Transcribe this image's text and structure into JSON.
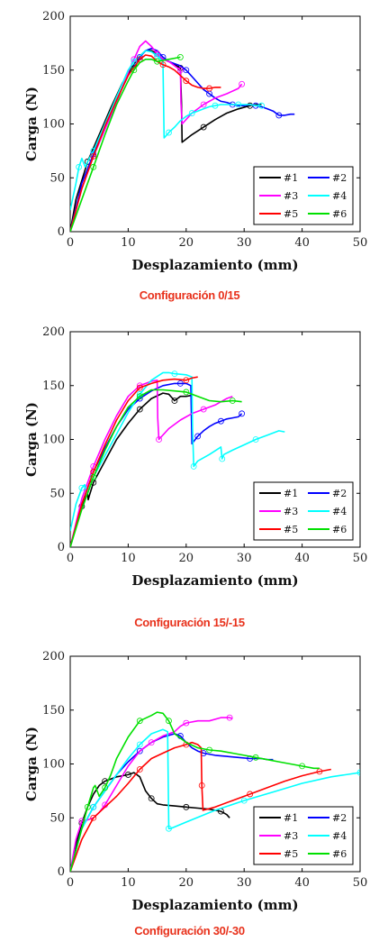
{
  "chart_data": [
    {
      "type": "line",
      "caption": "Configuración 0/15",
      "xlabel": "Desplazamiento (mm)",
      "ylabel": "Carga (N)",
      "xlim": [
        0,
        50
      ],
      "ylim": [
        0,
        200
      ],
      "xticks": [
        0,
        10,
        20,
        30,
        40,
        50
      ],
      "yticks": [
        0,
        50,
        100,
        150,
        200
      ],
      "legend_position": "lower-right",
      "series": [
        {
          "name": "#1",
          "color": "#000000",
          "x": [
            0,
            1,
            3,
            5,
            7,
            9,
            11,
            12,
            13,
            14,
            15,
            16,
            17,
            18,
            19,
            19.2,
            19.3,
            21,
            23,
            25,
            27,
            29,
            31,
            32,
            33
          ],
          "y": [
            0,
            30,
            65,
            90,
            115,
            138,
            155,
            163,
            168,
            168,
            165,
            160,
            158,
            155,
            152,
            120,
            83,
            90,
            97,
            104,
            110,
            114,
            117,
            118,
            118
          ]
        },
        {
          "name": "#2",
          "color": "#0000ff",
          "x": [
            0,
            2,
            4,
            6,
            8,
            10,
            12,
            13,
            14,
            15,
            16,
            17,
            18,
            19,
            20,
            21,
            22,
            23,
            24,
            25,
            26,
            27,
            28,
            29,
            30,
            31,
            32,
            33,
            34,
            35,
            36,
            37,
            38,
            38.7
          ],
          "y": [
            0,
            45,
            72,
            98,
            122,
            145,
            162,
            168,
            170,
            168,
            162,
            158,
            156,
            154,
            150,
            144,
            138,
            132,
            128,
            124,
            121,
            120,
            118,
            117,
            117,
            118,
            117,
            116,
            114,
            112,
            108,
            108,
            109,
            109
          ]
        },
        {
          "name": "#3",
          "color": "#ff00ff",
          "x": [
            0,
            2,
            4,
            6,
            8,
            10,
            11,
            12,
            13,
            14,
            15,
            16,
            17,
            18,
            19,
            19.1,
            19.3,
            21,
            23,
            25,
            27,
            29,
            29.6
          ],
          "y": [
            0,
            40,
            70,
            95,
            120,
            148,
            160,
            172,
            177,
            172,
            165,
            160,
            158,
            154,
            150,
            120,
            100,
            110,
            118,
            124,
            128,
            133,
            137
          ]
        },
        {
          "name": "#4",
          "color": "#00ffff",
          "x": [
            0,
            1,
            1.5,
            2,
            2.6,
            3,
            4,
            6,
            8,
            10,
            11,
            12,
            13,
            14,
            15,
            16,
            16.1,
            16.2,
            17,
            18,
            19,
            20,
            21,
            22,
            23,
            24,
            25,
            26,
            27,
            28,
            29,
            30,
            31,
            32,
            33
          ],
          "y": [
            20,
            45,
            60,
            68,
            60,
            65,
            75,
            100,
            125,
            150,
            158,
            163,
            168,
            167,
            163,
            158,
            120,
            87,
            92,
            97,
            103,
            107,
            110,
            112,
            114,
            116,
            117,
            118,
            118,
            118,
            118,
            118,
            118,
            117,
            117
          ]
        },
        {
          "name": "#5",
          "color": "#ff0000",
          "x": [
            0,
            2,
            4,
            6,
            8,
            10,
            12,
            13,
            14,
            15,
            16,
            17,
            18,
            19,
            20,
            21,
            22,
            23,
            24,
            25,
            26
          ],
          "y": [
            0,
            40,
            70,
            98,
            122,
            145,
            160,
            164,
            163,
            158,
            155,
            153,
            150,
            145,
            140,
            136,
            134,
            133,
            133,
            134,
            134
          ]
        },
        {
          "name": "#6",
          "color": "#00e000",
          "x": [
            0,
            2,
            4,
            6,
            8,
            10,
            11,
            12,
            13,
            14,
            15,
            16,
            17,
            18,
            19
          ],
          "y": [
            0,
            30,
            60,
            90,
            118,
            140,
            150,
            157,
            160,
            160,
            158,
            159,
            160,
            161,
            162
          ]
        }
      ]
    },
    {
      "type": "line",
      "caption": "Configuración 15/-15",
      "xlabel": "Desplazamiento (mm)",
      "ylabel": "Carga (N)",
      "xlim": [
        0,
        50
      ],
      "ylim": [
        0,
        200
      ],
      "xticks": [
        0,
        10,
        20,
        30,
        40,
        50
      ],
      "yticks": [
        0,
        50,
        100,
        150,
        200
      ],
      "legend_position": "lower-right",
      "series": [
        {
          "name": "#1",
          "color": "#000000",
          "x": [
            0,
            1,
            2,
            3,
            3.1,
            3.3,
            4,
            6,
            8,
            10,
            12,
            14,
            16,
            17,
            18,
            19,
            20,
            21
          ],
          "y": [
            0,
            20,
            38,
            50,
            44,
            48,
            60,
            80,
            100,
            115,
            128,
            138,
            143,
            142,
            136,
            140,
            140,
            141
          ]
        },
        {
          "name": "#2",
          "color": "#0000ff",
          "x": [
            0,
            2,
            4,
            6,
            8,
            10,
            12,
            14,
            16,
            18,
            19,
            20,
            20.8,
            21,
            22,
            23,
            24,
            25,
            26,
            27,
            28,
            29,
            29.6
          ],
          "y": [
            0,
            40,
            70,
            92,
            112,
            128,
            138,
            145,
            150,
            152,
            152,
            152,
            150,
            96,
            103,
            108,
            112,
            115,
            117,
            119,
            120,
            121,
            124
          ]
        },
        {
          "name": "#3",
          "color": "#ff00ff",
          "x": [
            0,
            2,
            4,
            6,
            8,
            10,
            12,
            14,
            15,
            15.1,
            15.3,
            17,
            19,
            21,
            23,
            25,
            27,
            28
          ],
          "y": [
            0,
            45,
            75,
            100,
            122,
            140,
            150,
            154,
            155,
            120,
            100,
            110,
            118,
            124,
            128,
            132,
            138,
            140
          ]
        },
        {
          "name": "#4",
          "color": "#00ffff",
          "x": [
            0,
            1,
            2,
            2.5,
            3,
            3.3,
            4,
            6,
            8,
            10,
            12,
            14,
            16,
            17,
            18,
            20,
            21,
            21.1,
            21.3,
            22,
            24,
            26,
            26.2,
            26.5,
            28,
            30,
            32,
            34,
            36,
            37
          ],
          "y": [
            15,
            40,
            55,
            58,
            50,
            55,
            65,
            85,
            105,
            125,
            142,
            155,
            162,
            162,
            161,
            160,
            158,
            110,
            75,
            80,
            86,
            93,
            82,
            86,
            90,
            95,
            100,
            104,
            108,
            107
          ]
        },
        {
          "name": "#5",
          "color": "#ff0000",
          "x": [
            0,
            2,
            4,
            6,
            8,
            10,
            12,
            14,
            16,
            18,
            20,
            21,
            22
          ],
          "y": [
            0,
            40,
            70,
            95,
            118,
            136,
            148,
            152,
            155,
            156,
            155,
            157,
            158
          ]
        },
        {
          "name": "#6",
          "color": "#00e000",
          "x": [
            0,
            2,
            4,
            6,
            8,
            10,
            12,
            14,
            16,
            18,
            20,
            22,
            24,
            26,
            28,
            29.6
          ],
          "y": [
            0,
            35,
            65,
            90,
            112,
            130,
            140,
            146,
            146,
            145,
            144,
            140,
            136,
            135,
            136,
            135
          ]
        }
      ]
    },
    {
      "type": "line",
      "caption": "Configuración 30/-30",
      "xlabel": "Desplazamiento (mm)",
      "ylabel": "Carga (N)",
      "xlim": [
        0,
        50
      ],
      "ylim": [
        0,
        200
      ],
      "xticks": [
        0,
        10,
        20,
        30,
        40,
        50
      ],
      "yticks": [
        0,
        50,
        100,
        150,
        200
      ],
      "legend_position": "lower-right",
      "series": [
        {
          "name": "#1",
          "color": "#000000",
          "x": [
            0,
            1,
            2,
            3,
            4,
            5,
            6,
            7,
            8,
            9,
            10,
            11,
            12,
            13,
            14,
            15,
            16,
            18,
            20,
            22,
            24,
            25,
            26,
            27,
            27.5
          ],
          "y": [
            0,
            25,
            45,
            60,
            72,
            80,
            84,
            86,
            88,
            89,
            90,
            92,
            88,
            75,
            68,
            63,
            62,
            61,
            60,
            59,
            58,
            57,
            56,
            53,
            50
          ]
        },
        {
          "name": "#2",
          "color": "#0000ff",
          "x": [
            0,
            2,
            4,
            6,
            8,
            10,
            12,
            14,
            16,
            18,
            19,
            20,
            21,
            22,
            23,
            25,
            27,
            29,
            31,
            33,
            34,
            35
          ],
          "y": [
            0,
            40,
            60,
            75,
            90,
            102,
            112,
            120,
            125,
            128,
            126,
            120,
            115,
            112,
            110,
            108,
            107,
            106,
            105,
            105,
            104,
            104
          ]
        },
        {
          "name": "#3",
          "color": "#ff00ff",
          "x": [
            0,
            1,
            2,
            3,
            4,
            5,
            6,
            8,
            10,
            12,
            14,
            16,
            18,
            19,
            20,
            22,
            24,
            26,
            27.5,
            28
          ],
          "y": [
            0,
            30,
            47,
            48,
            50,
            55,
            62,
            80,
            98,
            112,
            120,
            126,
            130,
            135,
            138,
            140,
            140,
            143,
            143,
            142
          ]
        },
        {
          "name": "#4",
          "color": "#00ffff",
          "x": [
            0,
            2,
            4,
            6,
            8,
            10,
            12,
            14,
            16,
            16.8,
            17,
            17.3,
            20,
            25,
            30,
            35,
            40,
            45,
            50
          ],
          "y": [
            0,
            40,
            60,
            75,
            90,
            105,
            118,
            128,
            132,
            130,
            40,
            40,
            46,
            57,
            66,
            74,
            82,
            88,
            92
          ]
        },
        {
          "name": "#5",
          "color": "#ff0000",
          "x": [
            0,
            2,
            4,
            6,
            8,
            10,
            12,
            14,
            16,
            18,
            20,
            21,
            22,
            22.6,
            22.7,
            22.9,
            25,
            28,
            31,
            34,
            37,
            40,
            43,
            45
          ],
          "y": [
            0,
            30,
            50,
            60,
            70,
            82,
            95,
            105,
            110,
            115,
            118,
            120,
            118,
            115,
            80,
            57,
            60,
            66,
            72,
            78,
            84,
            89,
            93,
            95
          ]
        },
        {
          "name": "#6",
          "color": "#00e000",
          "x": [
            0,
            2,
            3,
            4,
            4.3,
            5,
            6,
            7,
            8,
            10,
            12,
            14,
            15,
            16,
            17,
            18,
            20,
            22,
            24,
            26,
            28,
            30,
            32,
            34,
            36,
            38,
            40,
            42,
            43
          ],
          "y": [
            0,
            40,
            60,
            78,
            80,
            70,
            78,
            90,
            105,
            125,
            140,
            145,
            148,
            147,
            140,
            128,
            120,
            115,
            113,
            112,
            110,
            108,
            106,
            104,
            102,
            100,
            98,
            96,
            96
          ]
        }
      ]
    }
  ]
}
